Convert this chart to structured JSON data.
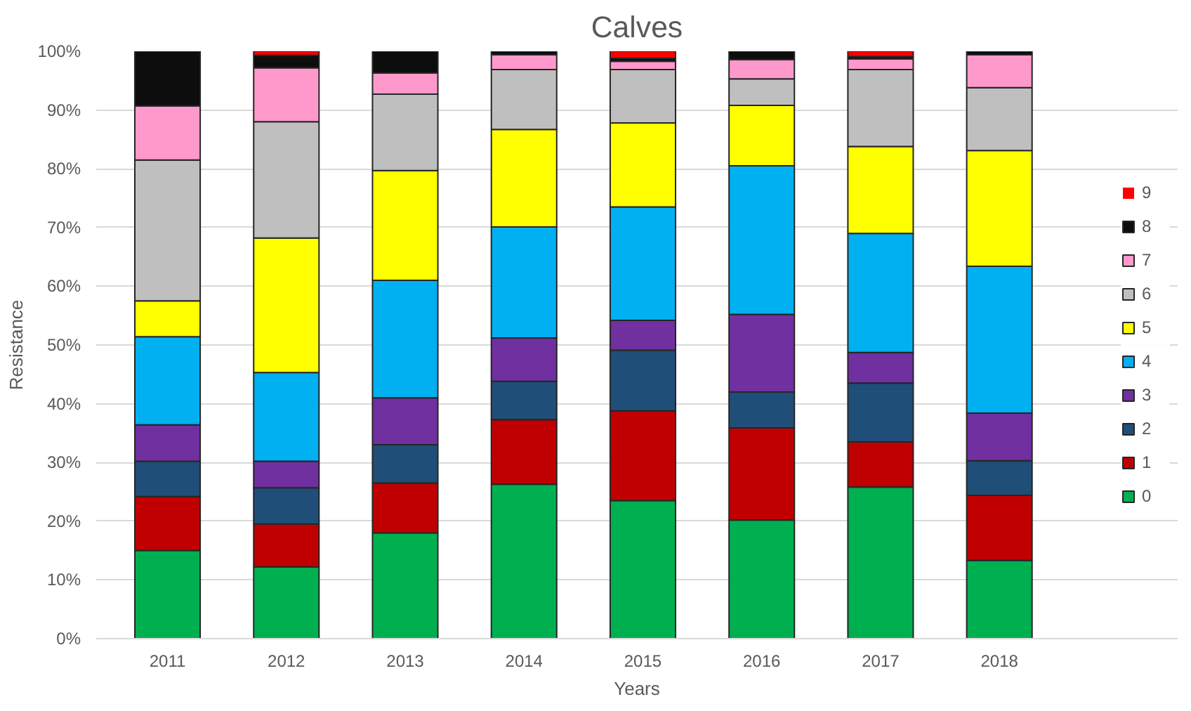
{
  "chart_data": {
    "type": "bar",
    "title": "Calves",
    "xlabel": "Years",
    "ylabel": "Resistance",
    "stacked": true,
    "categories": [
      "2011",
      "2012",
      "2013",
      "2014",
      "2015",
      "2016",
      "2017",
      "2018"
    ],
    "series": [
      {
        "name": "0",
        "color": "#00b050",
        "values": [
          15,
          12.2,
          18,
          26.3,
          23.5,
          20.2,
          25.8,
          13.3
        ]
      },
      {
        "name": "1",
        "color": "#c00000",
        "values": [
          9.2,
          7.3,
          8.5,
          11,
          15.3,
          15.7,
          7.7,
          11.1
        ]
      },
      {
        "name": "2",
        "color": "#1f4e79",
        "values": [
          6,
          6.2,
          6.5,
          6.5,
          10.3,
          6.1,
          10,
          5.9
        ]
      },
      {
        "name": "3",
        "color": "#7030a0",
        "values": [
          6.2,
          4.5,
          8,
          7.4,
          5.1,
          13.2,
          5.2,
          8.1
        ]
      },
      {
        "name": "4",
        "color": "#00b0f0",
        "values": [
          15,
          15.1,
          20,
          18.9,
          19.3,
          25.3,
          20.3,
          25
        ]
      },
      {
        "name": "5",
        "color": "#ffff00",
        "values": [
          6.1,
          22.9,
          18.7,
          16.6,
          14.3,
          10.3,
          14.8,
          19.7
        ]
      },
      {
        "name": "6",
        "color": "#bfbfbf",
        "values": [
          24,
          19.8,
          13,
          10.2,
          9.1,
          4.5,
          13.1,
          10.7
        ]
      },
      {
        "name": "7",
        "color": "#ff99cc",
        "values": [
          9.2,
          9.2,
          3.6,
          2.5,
          1.4,
          3.3,
          1.8,
          5.6
        ]
      },
      {
        "name": "8",
        "color": "#0d0d0d",
        "values": [
          9.3,
          2.1,
          3.7,
          0.6,
          0.5,
          1.4,
          0.4,
          0.6
        ]
      },
      {
        "name": "9",
        "color": "#ff0000",
        "values": [
          0,
          0.7,
          0,
          0,
          1.2,
          0,
          0.9,
          0
        ]
      }
    ],
    "ylim": [
      0,
      100
    ],
    "yticks": [
      {
        "value": 0,
        "label": "0%"
      },
      {
        "value": 10,
        "label": "10%"
      },
      {
        "value": 20,
        "label": "20%"
      },
      {
        "value": 30,
        "label": "30%"
      },
      {
        "value": 40,
        "label": "40%"
      },
      {
        "value": 50,
        "label": "50%"
      },
      {
        "value": 60,
        "label": "60%"
      },
      {
        "value": 70,
        "label": "70%"
      },
      {
        "value": 80,
        "label": "80%"
      },
      {
        "value": 90,
        "label": "90%"
      },
      {
        "value": 100,
        "label": "100%"
      }
    ],
    "grid": "y",
    "legend": "right"
  }
}
